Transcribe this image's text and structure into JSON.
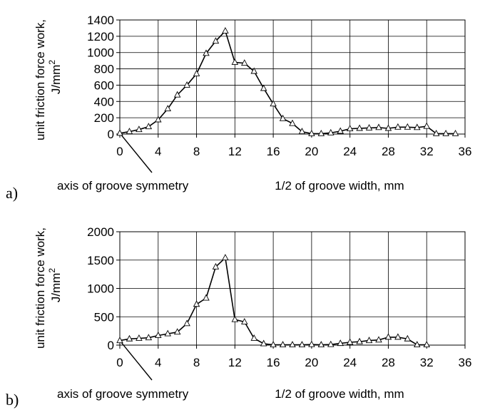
{
  "chart_data": [
    {
      "type": "line",
      "panel_label": "a)",
      "ylabel_line1": "unit friction force work,",
      "ylabel_line2": "J/mm",
      "ylabel_sup": "2",
      "xlabel": "1/2 of groove width, mm",
      "annotation": "axis of groove symmetry",
      "xlim": [
        0,
        36
      ],
      "ylim": [
        0,
        1400
      ],
      "xticks": [
        0,
        4,
        8,
        12,
        16,
        20,
        24,
        28,
        32,
        36
      ],
      "yticks": [
        0,
        200,
        400,
        600,
        800,
        1000,
        1200,
        1400
      ],
      "grid": true,
      "series": [
        {
          "marker": "triangle",
          "x": [
            0,
            1,
            2,
            3,
            4,
            5,
            6,
            7,
            8,
            9,
            10,
            11,
            12,
            13,
            14,
            15,
            16,
            17,
            18,
            19,
            20,
            21,
            22,
            23,
            24,
            25,
            26,
            27,
            28,
            29,
            30,
            31,
            32,
            33,
            34,
            35
          ],
          "y": [
            10,
            30,
            55,
            90,
            175,
            310,
            480,
            600,
            740,
            990,
            1140,
            1265,
            880,
            870,
            770,
            560,
            370,
            190,
            130,
            30,
            5,
            5,
            15,
            35,
            65,
            70,
            75,
            80,
            70,
            85,
            85,
            80,
            95,
            5,
            5,
            5
          ]
        }
      ]
    },
    {
      "type": "line",
      "panel_label": "b)",
      "ylabel_line1": "unit friction force work,",
      "ylabel_line2": "J/mm",
      "ylabel_sup": "2",
      "xlabel": "1/2 of groove width, mm",
      "annotation": "axis of groove symmetry",
      "xlim": [
        0,
        36
      ],
      "ylim": [
        0,
        2000
      ],
      "xticks": [
        0,
        4,
        8,
        12,
        16,
        20,
        24,
        28,
        32,
        36
      ],
      "yticks": [
        0,
        500,
        1000,
        1500,
        2000
      ],
      "grid": true,
      "series": [
        {
          "marker": "triangle",
          "x": [
            0,
            1,
            2,
            3,
            4,
            5,
            6,
            7,
            8,
            9,
            10,
            11,
            12,
            13,
            14,
            15,
            16,
            17,
            18,
            19,
            20,
            21,
            22,
            23,
            24,
            25,
            26,
            27,
            28,
            29,
            30,
            31,
            32
          ],
          "y": [
            80,
            110,
            120,
            130,
            170,
            200,
            230,
            380,
            720,
            830,
            1380,
            1540,
            450,
            410,
            120,
            25,
            5,
            5,
            5,
            5,
            10,
            5,
            10,
            30,
            50,
            60,
            80,
            90,
            140,
            140,
            110,
            5,
            5
          ]
        }
      ]
    }
  ]
}
